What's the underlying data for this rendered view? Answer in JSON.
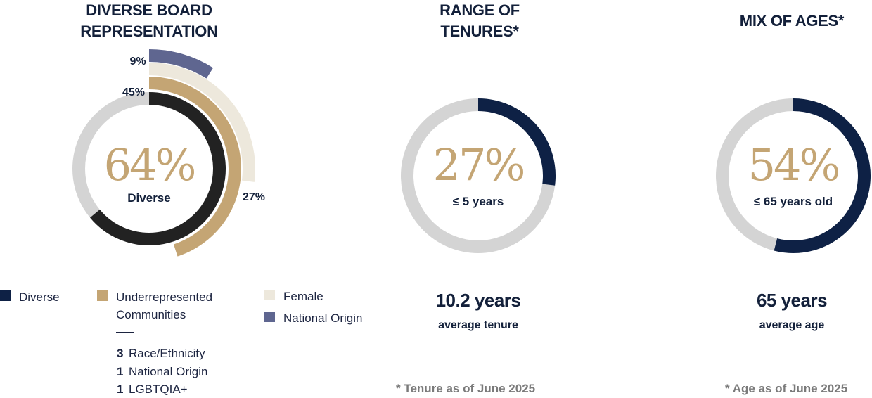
{
  "titles": {
    "board": [
      "DIVERSE BOARD",
      "REPRESENTATION"
    ],
    "tenure": [
      "RANGE OF",
      "TENURES*"
    ],
    "ages": [
      "MIX OF AGES*"
    ]
  },
  "chart_data": [
    {
      "type": "pie",
      "title": "DIVERSE BOARD REPRESENTATION",
      "center_value": "64%",
      "center_label": "Diverse",
      "series": [
        {
          "name": "Diverse",
          "value": 64,
          "label": "",
          "color": "#222222"
        },
        {
          "name": "Underrepresented Communities",
          "value": 45,
          "label": "45%",
          "color": "#c4a574"
        },
        {
          "name": "Female",
          "value": 27,
          "label": "27%",
          "color": "#ede8dc"
        },
        {
          "name": "National Origin",
          "value": 9,
          "label": "9%",
          "color": "#5f6690"
        }
      ],
      "track_color": "#d4d4d4"
    },
    {
      "type": "pie",
      "title": "RANGE OF TENURES*",
      "center_value": "27%",
      "center_label": "≤ 5 years",
      "value": 27,
      "color": "#0e2145",
      "track_color": "#d4d4d4"
    },
    {
      "type": "pie",
      "title": "MIX OF AGES*",
      "center_value": "54%",
      "center_label": "≤ 65 years old",
      "value": 54,
      "color": "#0e2145",
      "track_color": "#d4d4d4"
    }
  ],
  "legend": [
    {
      "label_lines": [
        "Diverse"
      ],
      "color": "#0e2145"
    },
    {
      "label_lines": [
        "Underrepresented",
        "Communities"
      ],
      "color": "#c4a574"
    },
    {
      "label_lines": [
        "Female"
      ],
      "color": "#ede8dc"
    },
    {
      "label_lines": [
        "National Origin"
      ],
      "color": "#5f6690"
    }
  ],
  "breakdown": [
    {
      "count": "3",
      "label": "Race/Ethnicity"
    },
    {
      "count": "1",
      "label": "National Origin"
    },
    {
      "count": "1",
      "label": "LGBTQIA+"
    }
  ],
  "stats": {
    "tenure": {
      "value": "10.2 years",
      "label": "average tenure",
      "footnote": "* Tenure as of June 2025"
    },
    "ages": {
      "value": "65 years",
      "label": "average age",
      "footnote": "* Age as of June 2025"
    }
  }
}
